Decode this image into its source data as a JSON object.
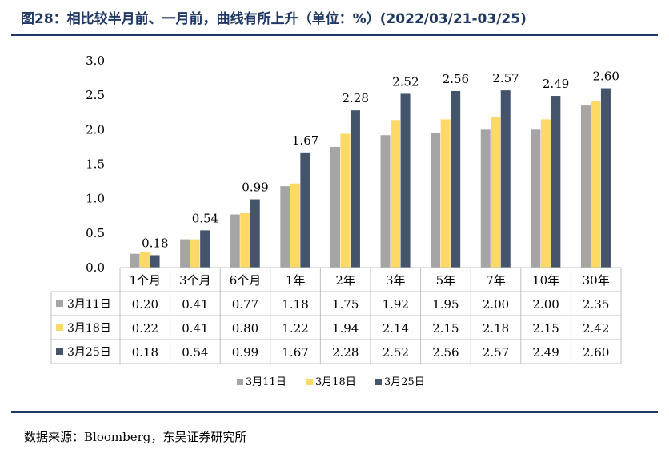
{
  "title": "图28：相比较半月前、一月前，曲线有所上升（单位：%）(2022/03/21-03/25)",
  "source": "数据来源：Bloomberg，东吴证券研究所",
  "chart_data": {
    "type": "bar",
    "categories": [
      "1个月",
      "3个月",
      "6个月",
      "1年",
      "2年",
      "3年",
      "5年",
      "7年",
      "10年",
      "30年"
    ],
    "ylim": [
      0,
      3.0
    ],
    "yticks": [
      "0.0",
      "0.5",
      "1.0",
      "1.5",
      "2.0",
      "2.5",
      "3.0"
    ],
    "grid": false,
    "legend_position": "bottom",
    "series": [
      {
        "name": "3月11日",
        "color": "#a5a5a5",
        "values": [
          0.2,
          0.41,
          0.77,
          1.18,
          1.75,
          1.92,
          1.95,
          2.0,
          2.0,
          2.35
        ]
      },
      {
        "name": "3月18日",
        "color": "#ffd966",
        "values": [
          0.22,
          0.41,
          0.8,
          1.22,
          1.94,
          2.14,
          2.15,
          2.18,
          2.15,
          2.42
        ]
      },
      {
        "name": "3月25日",
        "color": "#44546a",
        "values": [
          0.18,
          0.54,
          0.99,
          1.67,
          2.28,
          2.52,
          2.56,
          2.57,
          2.49,
          2.6
        ]
      }
    ],
    "data_labels": [
      "0.18",
      "0.54",
      "0.99",
      "1.67",
      "2.28",
      "2.52",
      "2.56",
      "2.57",
      "2.49",
      "2.60"
    ],
    "table": {
      "rows": [
        [
          "0.20",
          "0.41",
          "0.77",
          "1.18",
          "1.75",
          "1.92",
          "1.95",
          "2.00",
          "2.00",
          "2.35"
        ],
        [
          "0.22",
          "0.41",
          "0.80",
          "1.22",
          "1.94",
          "2.14",
          "2.15",
          "2.18",
          "2.15",
          "2.42"
        ],
        [
          "0.18",
          "0.54",
          "0.99",
          "1.67",
          "2.28",
          "2.52",
          "2.56",
          "2.57",
          "2.49",
          "2.60"
        ]
      ]
    }
  }
}
